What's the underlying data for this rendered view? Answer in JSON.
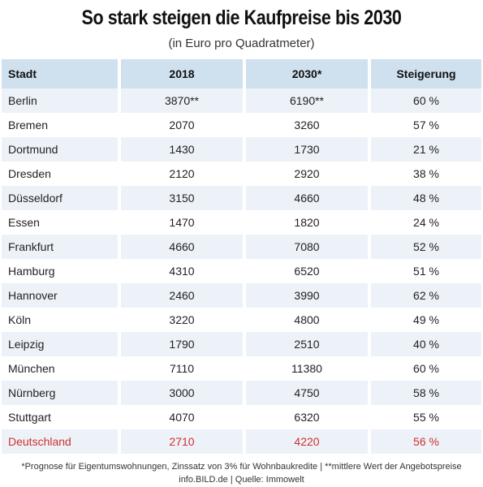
{
  "title": "So stark steigen die Kaufpreise bis 2030",
  "subtitle": "(in Euro pro Quadratmeter)",
  "columns": [
    "Stadt",
    "2018",
    "2030*",
    "Steigerung"
  ],
  "rows": [
    [
      "Berlin",
      "3870**",
      "6190**",
      "60 %"
    ],
    [
      "Bremen",
      "2070",
      "3260",
      "57 %"
    ],
    [
      "Dortmund",
      "1430",
      "1730",
      "21 %"
    ],
    [
      "Dresden",
      "2120",
      "2920",
      "38 %"
    ],
    [
      "Düsseldorf",
      "3150",
      "4660",
      "48 %"
    ],
    [
      "Essen",
      "1470",
      "1820",
      "24 %"
    ],
    [
      "Frankfurt",
      "4660",
      "7080",
      "52 %"
    ],
    [
      "Hamburg",
      "4310",
      "6520",
      "51 %"
    ],
    [
      "Hannover",
      "2460",
      "3990",
      "62 %"
    ],
    [
      "Köln",
      "3220",
      "4800",
      "49 %"
    ],
    [
      "Leipzig",
      "1790",
      "2510",
      "40 %"
    ],
    [
      "München",
      "7110",
      "11380",
      "60 %"
    ],
    [
      "Nürnberg",
      "3000",
      "4750",
      "58 %"
    ],
    [
      "Stuttgart",
      "4070",
      "6320",
      "55 %"
    ]
  ],
  "total": [
    "Deutschland",
    "2710",
    "4220",
    "56 %"
  ],
  "colors": {
    "header_bg": "#cfe0ef",
    "row_shade": "#edf2f8",
    "total_text": "#d0302a"
  },
  "footer": {
    "note": "*Prognose für Eigentumswohnungen, Zinssatz von 3% für Wohnbaukredite | **mittlere Wert der Angebotspreise",
    "source": "info.BILD.de | Quelle: Immowelt"
  }
}
